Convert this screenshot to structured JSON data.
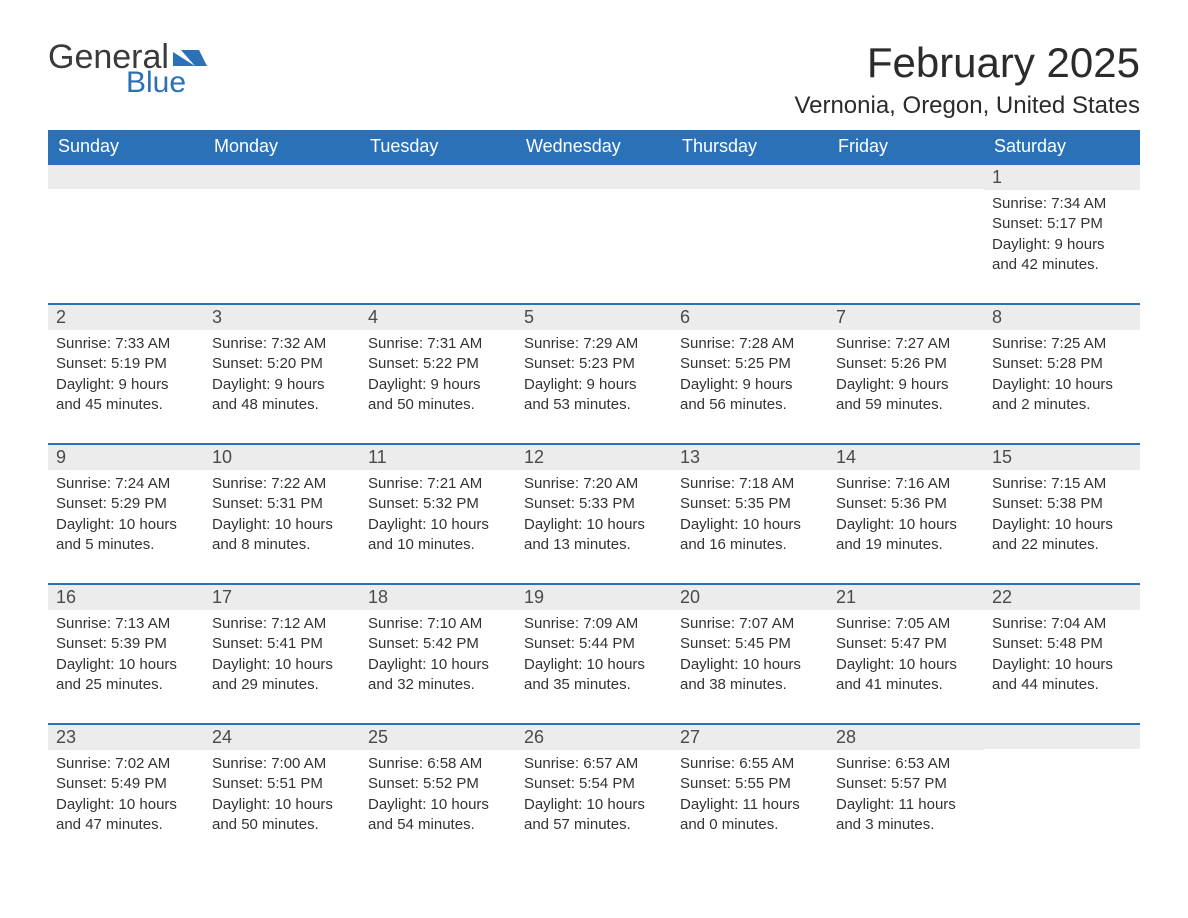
{
  "brand": {
    "word1": "General",
    "word2": "Blue",
    "word1_color": "#3a3a3a",
    "word2_color": "#2a71b8",
    "mark_color": "#2a71b8"
  },
  "title": "February 2025",
  "location": "Vernonia, Oregon, United States",
  "colors": {
    "header_bg": "#2a71b8",
    "header_text": "#ffffff",
    "row_divider": "#2a71b8",
    "daynum_bg": "#ececec",
    "text": "#333333",
    "page_bg": "#ffffff"
  },
  "typography": {
    "title_fontsize": 42,
    "location_fontsize": 24,
    "weekday_fontsize": 18,
    "daynum_fontsize": 18,
    "body_fontsize": 15
  },
  "weekdays": [
    "Sunday",
    "Monday",
    "Tuesday",
    "Wednesday",
    "Thursday",
    "Friday",
    "Saturday"
  ],
  "weeks": [
    [
      {
        "num": "",
        "sunrise": "",
        "sunset": "",
        "daylight": ""
      },
      {
        "num": "",
        "sunrise": "",
        "sunset": "",
        "daylight": ""
      },
      {
        "num": "",
        "sunrise": "",
        "sunset": "",
        "daylight": ""
      },
      {
        "num": "",
        "sunrise": "",
        "sunset": "",
        "daylight": ""
      },
      {
        "num": "",
        "sunrise": "",
        "sunset": "",
        "daylight": ""
      },
      {
        "num": "",
        "sunrise": "",
        "sunset": "",
        "daylight": ""
      },
      {
        "num": "1",
        "sunrise": "Sunrise: 7:34 AM",
        "sunset": "Sunset: 5:17 PM",
        "daylight": "Daylight: 9 hours and 42 minutes."
      }
    ],
    [
      {
        "num": "2",
        "sunrise": "Sunrise: 7:33 AM",
        "sunset": "Sunset: 5:19 PM",
        "daylight": "Daylight: 9 hours and 45 minutes."
      },
      {
        "num": "3",
        "sunrise": "Sunrise: 7:32 AM",
        "sunset": "Sunset: 5:20 PM",
        "daylight": "Daylight: 9 hours and 48 minutes."
      },
      {
        "num": "4",
        "sunrise": "Sunrise: 7:31 AM",
        "sunset": "Sunset: 5:22 PM",
        "daylight": "Daylight: 9 hours and 50 minutes."
      },
      {
        "num": "5",
        "sunrise": "Sunrise: 7:29 AM",
        "sunset": "Sunset: 5:23 PM",
        "daylight": "Daylight: 9 hours and 53 minutes."
      },
      {
        "num": "6",
        "sunrise": "Sunrise: 7:28 AM",
        "sunset": "Sunset: 5:25 PM",
        "daylight": "Daylight: 9 hours and 56 minutes."
      },
      {
        "num": "7",
        "sunrise": "Sunrise: 7:27 AM",
        "sunset": "Sunset: 5:26 PM",
        "daylight": "Daylight: 9 hours and 59 minutes."
      },
      {
        "num": "8",
        "sunrise": "Sunrise: 7:25 AM",
        "sunset": "Sunset: 5:28 PM",
        "daylight": "Daylight: 10 hours and 2 minutes."
      }
    ],
    [
      {
        "num": "9",
        "sunrise": "Sunrise: 7:24 AM",
        "sunset": "Sunset: 5:29 PM",
        "daylight": "Daylight: 10 hours and 5 minutes."
      },
      {
        "num": "10",
        "sunrise": "Sunrise: 7:22 AM",
        "sunset": "Sunset: 5:31 PM",
        "daylight": "Daylight: 10 hours and 8 minutes."
      },
      {
        "num": "11",
        "sunrise": "Sunrise: 7:21 AM",
        "sunset": "Sunset: 5:32 PM",
        "daylight": "Daylight: 10 hours and 10 minutes."
      },
      {
        "num": "12",
        "sunrise": "Sunrise: 7:20 AM",
        "sunset": "Sunset: 5:33 PM",
        "daylight": "Daylight: 10 hours and 13 minutes."
      },
      {
        "num": "13",
        "sunrise": "Sunrise: 7:18 AM",
        "sunset": "Sunset: 5:35 PM",
        "daylight": "Daylight: 10 hours and 16 minutes."
      },
      {
        "num": "14",
        "sunrise": "Sunrise: 7:16 AM",
        "sunset": "Sunset: 5:36 PM",
        "daylight": "Daylight: 10 hours and 19 minutes."
      },
      {
        "num": "15",
        "sunrise": "Sunrise: 7:15 AM",
        "sunset": "Sunset: 5:38 PM",
        "daylight": "Daylight: 10 hours and 22 minutes."
      }
    ],
    [
      {
        "num": "16",
        "sunrise": "Sunrise: 7:13 AM",
        "sunset": "Sunset: 5:39 PM",
        "daylight": "Daylight: 10 hours and 25 minutes."
      },
      {
        "num": "17",
        "sunrise": "Sunrise: 7:12 AM",
        "sunset": "Sunset: 5:41 PM",
        "daylight": "Daylight: 10 hours and 29 minutes."
      },
      {
        "num": "18",
        "sunrise": "Sunrise: 7:10 AM",
        "sunset": "Sunset: 5:42 PM",
        "daylight": "Daylight: 10 hours and 32 minutes."
      },
      {
        "num": "19",
        "sunrise": "Sunrise: 7:09 AM",
        "sunset": "Sunset: 5:44 PM",
        "daylight": "Daylight: 10 hours and 35 minutes."
      },
      {
        "num": "20",
        "sunrise": "Sunrise: 7:07 AM",
        "sunset": "Sunset: 5:45 PM",
        "daylight": "Daylight: 10 hours and 38 minutes."
      },
      {
        "num": "21",
        "sunrise": "Sunrise: 7:05 AM",
        "sunset": "Sunset: 5:47 PM",
        "daylight": "Daylight: 10 hours and 41 minutes."
      },
      {
        "num": "22",
        "sunrise": "Sunrise: 7:04 AM",
        "sunset": "Sunset: 5:48 PM",
        "daylight": "Daylight: 10 hours and 44 minutes."
      }
    ],
    [
      {
        "num": "23",
        "sunrise": "Sunrise: 7:02 AM",
        "sunset": "Sunset: 5:49 PM",
        "daylight": "Daylight: 10 hours and 47 minutes."
      },
      {
        "num": "24",
        "sunrise": "Sunrise: 7:00 AM",
        "sunset": "Sunset: 5:51 PM",
        "daylight": "Daylight: 10 hours and 50 minutes."
      },
      {
        "num": "25",
        "sunrise": "Sunrise: 6:58 AM",
        "sunset": "Sunset: 5:52 PM",
        "daylight": "Daylight: 10 hours and 54 minutes."
      },
      {
        "num": "26",
        "sunrise": "Sunrise: 6:57 AM",
        "sunset": "Sunset: 5:54 PM",
        "daylight": "Daylight: 10 hours and 57 minutes."
      },
      {
        "num": "27",
        "sunrise": "Sunrise: 6:55 AM",
        "sunset": "Sunset: 5:55 PM",
        "daylight": "Daylight: 11 hours and 0 minutes."
      },
      {
        "num": "28",
        "sunrise": "Sunrise: 6:53 AM",
        "sunset": "Sunset: 5:57 PM",
        "daylight": "Daylight: 11 hours and 3 minutes."
      },
      {
        "num": "",
        "sunrise": "",
        "sunset": "",
        "daylight": ""
      }
    ]
  ]
}
